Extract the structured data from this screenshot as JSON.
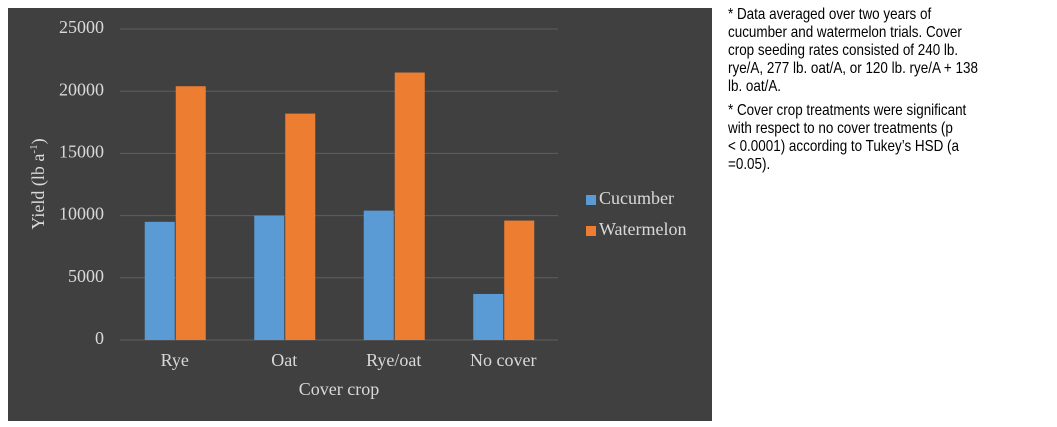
{
  "chart_data": {
    "type": "bar",
    "y_label": [
      "Yield (lb a",
      "-1",
      ")"
    ],
    "x_label": "Cover crop",
    "categories": [
      "Rye",
      "Oat",
      "Rye/oat",
      "No cover"
    ],
    "series": [
      {
        "name": "Cucumber",
        "color": "#5b9bd5",
        "values": [
          9500,
          10000,
          10400,
          3700
        ]
      },
      {
        "name": "Watermelon",
        "color": "#ed7d31",
        "values": [
          20400,
          18200,
          21500,
          9600
        ]
      }
    ],
    "ylim": [
      0,
      25000
    ],
    "yticks": [
      0,
      5000,
      10000,
      15000,
      20000,
      25000
    ],
    "grid": true
  },
  "notes": [
    [
      "* Data averaged over two years of",
      "cucumber and watermelon trials. Cover",
      "crop seeding rates consisted of 240 lb.",
      "rye/A, 277 lb. oat/A, or 120 lb. rye/A + 138",
      "lb. oat/A."
    ],
    [
      "* Cover crop treatments were significant",
      "with respect to no cover treatments (p",
      "< 0.0001) according to Tukey’s HSD (a",
      "=0.05)."
    ]
  ]
}
